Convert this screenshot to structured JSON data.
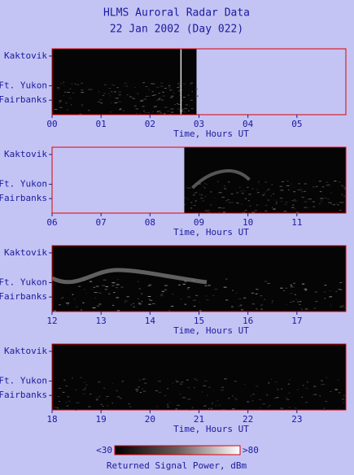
{
  "title": "HLMS Auroral Radar Data",
  "subtitle": "22 Jan 2002 (Day 022)",
  "chart_data": [
    {
      "type": "image",
      "xlabel": "Time, Hours UT",
      "xlim": [
        0,
        6
      ],
      "coverage": [
        0,
        2.95
      ],
      "xticks": [
        {
          "value": 0,
          "label": "00"
        },
        {
          "value": 1,
          "label": "01"
        },
        {
          "value": 2,
          "label": "02"
        },
        {
          "value": 3,
          "label": "03"
        },
        {
          "value": 4,
          "label": "04"
        },
        {
          "value": 5,
          "label": "05"
        }
      ],
      "ylim": [
        63.1,
        71.0
      ],
      "yticks": [
        {
          "value": 70.13,
          "label": "Kaktovik"
        },
        {
          "value": 66.56,
          "label": "Ft. Yukon"
        },
        {
          "value": 64.84,
          "label": "Fairbanks"
        }
      ]
    },
    {
      "type": "image",
      "xlabel": "Time, Hours UT",
      "xlim": [
        6,
        12
      ],
      "coverage": [
        8.7,
        12
      ],
      "xticks": [
        {
          "value": 6,
          "label": "06"
        },
        {
          "value": 7,
          "label": "07"
        },
        {
          "value": 8,
          "label": "08"
        },
        {
          "value": 9,
          "label": "09"
        },
        10,
        11
      ],
      "ylim": [
        63.1,
        71.0
      ],
      "yticks": [
        {
          "value": 70.13,
          "label": "Kaktovik"
        },
        {
          "value": 66.56,
          "label": "Ft. Yukon"
        },
        {
          "value": 64.84,
          "label": "Fairbanks"
        }
      ]
    },
    {
      "type": "image",
      "xlabel": "Time, Hours UT",
      "xlim": [
        12,
        18
      ],
      "coverage": [
        12,
        18
      ],
      "xticks": [
        12,
        13,
        14,
        15,
        16,
        17
      ],
      "ylim": [
        63.1,
        71.0
      ],
      "yticks": [
        {
          "value": 70.13,
          "label": "Kaktovik"
        },
        {
          "value": 66.56,
          "label": "Ft. Yukon"
        },
        {
          "value": 64.84,
          "label": "Fairbanks"
        }
      ]
    },
    {
      "type": "image",
      "xlabel": "Time, Hours UT",
      "xlim": [
        18,
        24
      ],
      "coverage": [
        18,
        24
      ],
      "xticks": [
        18,
        19,
        20,
        21,
        22,
        23
      ],
      "ylim": [
        63.1,
        71.0
      ],
      "yticks": [
        {
          "value": 70.13,
          "label": "Kaktovik"
        },
        {
          "value": 66.56,
          "label": "Ft. Yukon"
        },
        {
          "value": 64.84,
          "label": "Fairbanks"
        }
      ]
    }
  ],
  "colorbar": {
    "label": "Returned Signal Power, dBm",
    "lim": [
      30,
      80
    ],
    "ticks": [
      {
        "value": 30,
        "label": "<30"
      },
      {
        "value": 80,
        "label": ">80"
      }
    ]
  }
}
